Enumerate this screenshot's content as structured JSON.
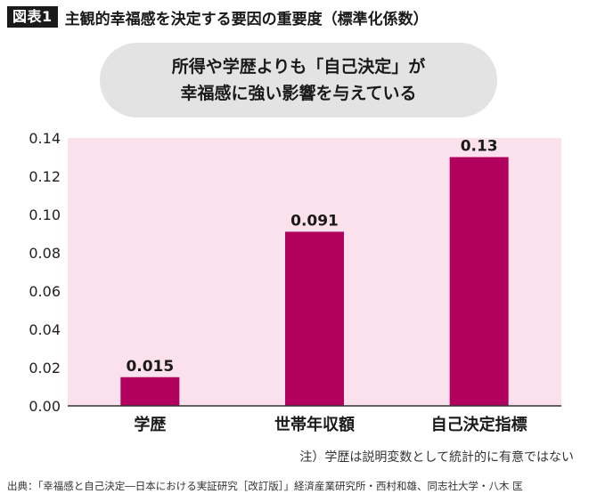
{
  "header": {
    "tag": "図表1",
    "title": "主観的幸福感を決定する要因の重要度（標準化係数）"
  },
  "callout": {
    "line1": "所得や学歴よりも「自己決定」が",
    "line2": "幸福感に強い影響を与えている"
  },
  "note": "注）学歴は説明変数として統計的に有意ではない",
  "source": "出典：「幸福感と自己決定―日本における実証研究［改訂版］」経済産業研究所・西村和雄、同志社大学・八木 匡",
  "colors": {
    "plot_background": "#fbe1ec",
    "bar": "#b1005e",
    "axis": "#333333"
  },
  "chart_data": {
    "type": "bar",
    "categories": [
      "学歴",
      "世帯年収額",
      "自己決定指標"
    ],
    "values": [
      0.015,
      0.091,
      0.13
    ],
    "data_labels": [
      "0.015",
      "0.091",
      "0.13"
    ],
    "yticks": [
      "0.00",
      "0.02",
      "0.04",
      "0.06",
      "0.08",
      "0.10",
      "0.12",
      "0.14"
    ],
    "ylim": [
      0,
      0.14
    ],
    "grid": false,
    "legend": "none"
  }
}
